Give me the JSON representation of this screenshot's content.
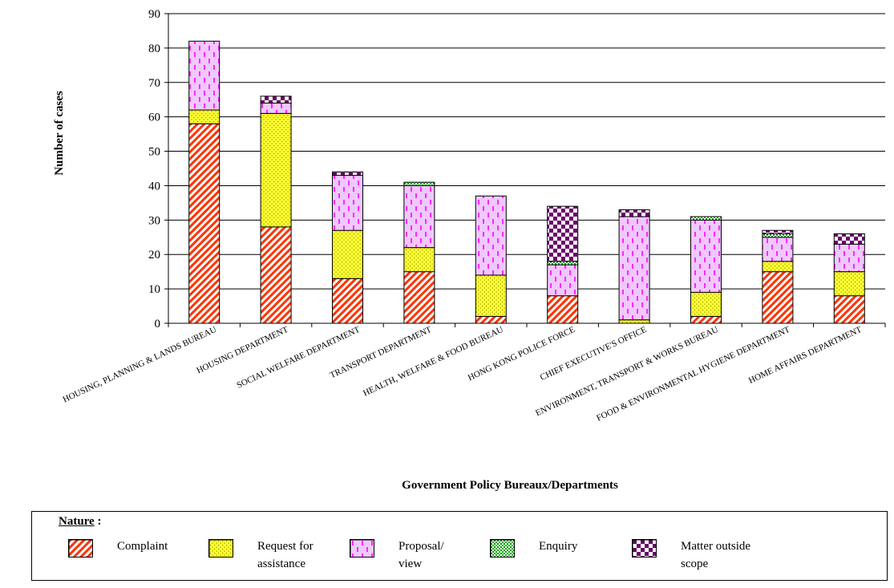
{
  "chart_data": {
    "type": "bar",
    "stacked": true,
    "title": "",
    "xlabel": "Government Policy Bureaux/Departments",
    "ylabel": "Number of cases",
    "ylim": [
      0,
      90
    ],
    "yticks": [
      0,
      10,
      20,
      30,
      40,
      50,
      60,
      70,
      80,
      90
    ],
    "grid": true,
    "legend_placement": "bottom",
    "categories": [
      "HOUSING, PLANNING & LANDS BUREAU",
      "HOUSING DEPARTMENT",
      "SOCIAL WELFARE DEPARTMENT",
      "TRANSPORT DEPARTMENT",
      "HEALTH, WELFARE & FOOD BUREAU",
      "HONG KONG POLICE FORCE",
      "CHIEF EXECUTIVE'S OFFICE",
      "ENVIRONMENT, TRANSPORT & WORKS BUREAU",
      "FOOD & ENVIRONMENTAL HYGIENE DEPARTMENT",
      "HOME AFFAIRS DEPARTMENT"
    ],
    "series": [
      {
        "name": "Complaint",
        "pattern": "diagonal-stripes",
        "color": "#ff3300",
        "values": [
          58,
          28,
          13,
          15,
          2,
          8,
          0,
          2,
          15,
          8
        ]
      },
      {
        "name": "Request for assistance",
        "pattern": "dots",
        "color": "#ffff00",
        "values": [
          4,
          33,
          14,
          7,
          12,
          0,
          1,
          7,
          3,
          7
        ]
      },
      {
        "name": "Proposal/ view",
        "pattern": "dashes",
        "color": "#ff33ff",
        "values": [
          20,
          3,
          16,
          18,
          23,
          9,
          30,
          21,
          7,
          8
        ]
      },
      {
        "name": "Enquiry",
        "pattern": "dense-dots",
        "color": "#009900",
        "values": [
          0,
          0,
          0,
          1,
          0,
          1,
          0,
          1,
          1,
          0
        ]
      },
      {
        "name": "Matter outside scope",
        "pattern": "checkerboard",
        "color": "#660066",
        "values": [
          0,
          2,
          1,
          0,
          0,
          16,
          2,
          0,
          1,
          3
        ]
      }
    ]
  },
  "legend": {
    "title": "Nature",
    "title_suffix": " :",
    "items": [
      {
        "label": "Complaint"
      },
      {
        "label": "Request for\nassistance"
      },
      {
        "label": "Proposal/\nview"
      },
      {
        "label": "Enquiry"
      },
      {
        "label": "Matter outside\nscope"
      }
    ]
  }
}
